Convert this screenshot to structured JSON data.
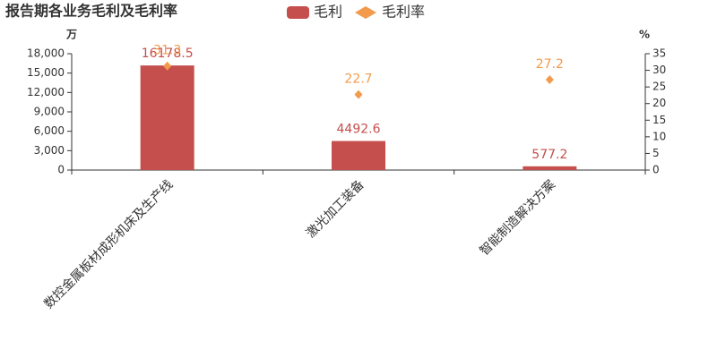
{
  "chart_data": {
    "type": "bar",
    "title": "报告期各业务毛利及毛利率",
    "y_unit": "万",
    "y2_unit": "%",
    "categories": [
      "数控金属板材成形机床及生产线",
      "激光加工装备",
      "智能制造解决方案"
    ],
    "series": [
      {
        "name": "毛利",
        "type": "bar",
        "color": "#c44f4d",
        "values": [
          16178.5,
          4492.6,
          577.2
        ]
      },
      {
        "name": "毛利率",
        "type": "scatter",
        "axis": "y2",
        "color": "#f39a4c",
        "values": [
          31.3,
          22.7,
          27.2
        ]
      }
    ],
    "ylim": [
      0,
      18000
    ],
    "yticks": [
      0,
      {
        "value": 3000,
        "label": "3,000"
      },
      {
        "value": 6000,
        "label": "6,000"
      },
      {
        "value": 9000,
        "label": "9,000"
      },
      {
        "value": 12000,
        "label": "12,000"
      },
      {
        "value": 15000,
        "label": "15,000"
      },
      {
        "value": 18000,
        "label": "18,000"
      }
    ],
    "y2lim": [
      0,
      35
    ],
    "y2ticks": [
      0,
      5,
      10,
      15,
      20,
      25,
      30,
      35
    ]
  }
}
